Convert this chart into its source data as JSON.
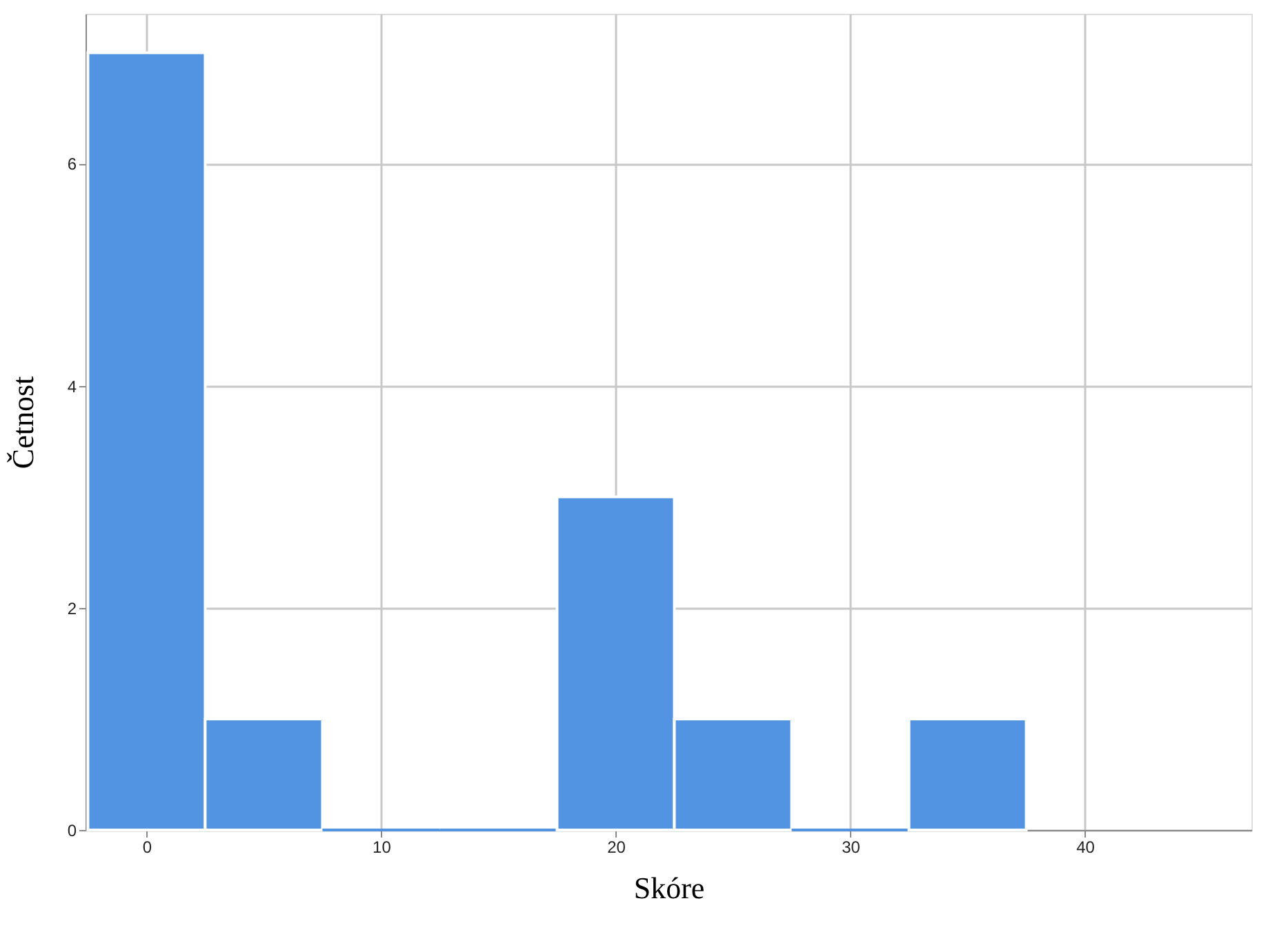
{
  "chart_data": {
    "type": "histogram",
    "xlabel": "Skóre",
    "ylabel": "Četnost",
    "bins": [
      -2.5,
      2.5,
      7.5,
      12.5,
      17.5,
      22.5,
      27.5,
      32.5,
      37.5
    ],
    "values": [
      7,
      1,
      0,
      0,
      3,
      1,
      0,
      1
    ],
    "color": "#5294e2",
    "xlim": [
      -2.6,
      47.1
    ],
    "xticks": [
      0,
      10,
      20,
      30,
      40
    ],
    "ylim": [
      0,
      7.35
    ],
    "yticks": [
      0,
      2,
      4,
      6
    ],
    "grid": true
  }
}
